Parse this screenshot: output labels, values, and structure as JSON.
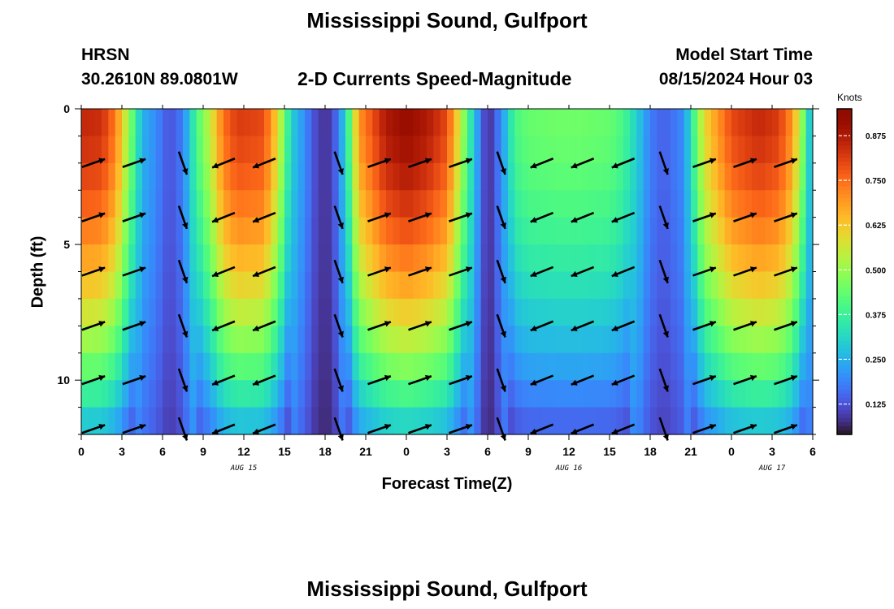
{
  "page": {
    "title": "Mississippi Sound, Gulfport",
    "station_id": "HRSN",
    "station_coords": "30.2610N  89.0801W",
    "subtitle": "2-D Currents Speed-Magnitude",
    "model_start_label": "Model Start Time",
    "model_start_value": "08/15/2024 Hour 03",
    "footer_title": "Mississippi Sound, Gulfport"
  },
  "chart_data": {
    "type": "heatmap",
    "xlabel": "Forecast Time(Z)",
    "ylabel": "Depth (ft)",
    "x_range_hours": [
      0,
      54
    ],
    "y_range_ft": [
      0,
      12
    ],
    "x_tick_labels": [
      "0",
      "3",
      "6",
      "9",
      "12",
      "15",
      "18",
      "21",
      "0",
      "3",
      "6",
      "9",
      "12",
      "15",
      "18",
      "21",
      "0",
      "3",
      "6"
    ],
    "y_ticks": [
      0,
      5,
      10
    ],
    "date_labels": [
      {
        "label": "AUG 15",
        "hour": 12
      },
      {
        "label": "AUG 16",
        "hour": 36
      },
      {
        "label": "AUG 17",
        "hour": 51
      }
    ],
    "colorbar": {
      "label": "Knots",
      "range": [
        0.04,
        0.95
      ],
      "ticks": [
        0.125,
        0.25,
        0.375,
        0.5,
        0.625,
        0.75,
        0.875
      ],
      "tick_labels": [
        "0.125",
        "0.250",
        "0.375",
        "0.500",
        "0.625",
        "0.750",
        "0.875"
      ],
      "colormap": "turbo"
    },
    "speed_profile_hours": [
      0,
      1.5,
      2.5,
      3.5,
      4.5,
      5.5,
      6.5,
      7.5,
      8.5,
      9.5,
      10.5,
      11.5,
      13.5,
      14.5,
      15.5,
      16.5,
      17.5,
      18.5,
      19.5,
      20.5,
      22.5,
      24,
      25.5,
      27,
      28,
      29,
      30,
      31,
      32,
      33,
      35,
      37,
      39,
      40,
      41,
      42,
      43,
      44.5,
      46,
      48,
      50,
      51.5,
      52.5,
      53.5,
      54
    ],
    "speed_profile_surface_knots": [
      0.85,
      0.84,
      0.74,
      0.5,
      0.25,
      0.2,
      0.12,
      0.18,
      0.4,
      0.55,
      0.75,
      0.82,
      0.8,
      0.6,
      0.3,
      0.2,
      0.09,
      0.09,
      0.3,
      0.7,
      0.88,
      0.92,
      0.88,
      0.8,
      0.55,
      0.28,
      0.06,
      0.2,
      0.4,
      0.44,
      0.45,
      0.45,
      0.44,
      0.4,
      0.3,
      0.18,
      0.14,
      0.2,
      0.6,
      0.8,
      0.85,
      0.82,
      0.7,
      0.4,
      0.2
    ],
    "depth_attenuation_factor_at_bottom": 0.3,
    "vector_rows_depth_ft": [
      2,
      4,
      6,
      8,
      10,
      11.8
    ],
    "vector_columns_hours": [
      0.9,
      3.9,
      7.5,
      10.5,
      13.5,
      19,
      22,
      25,
      28,
      31,
      34,
      37,
      40,
      43,
      46,
      49,
      52
    ]
  }
}
